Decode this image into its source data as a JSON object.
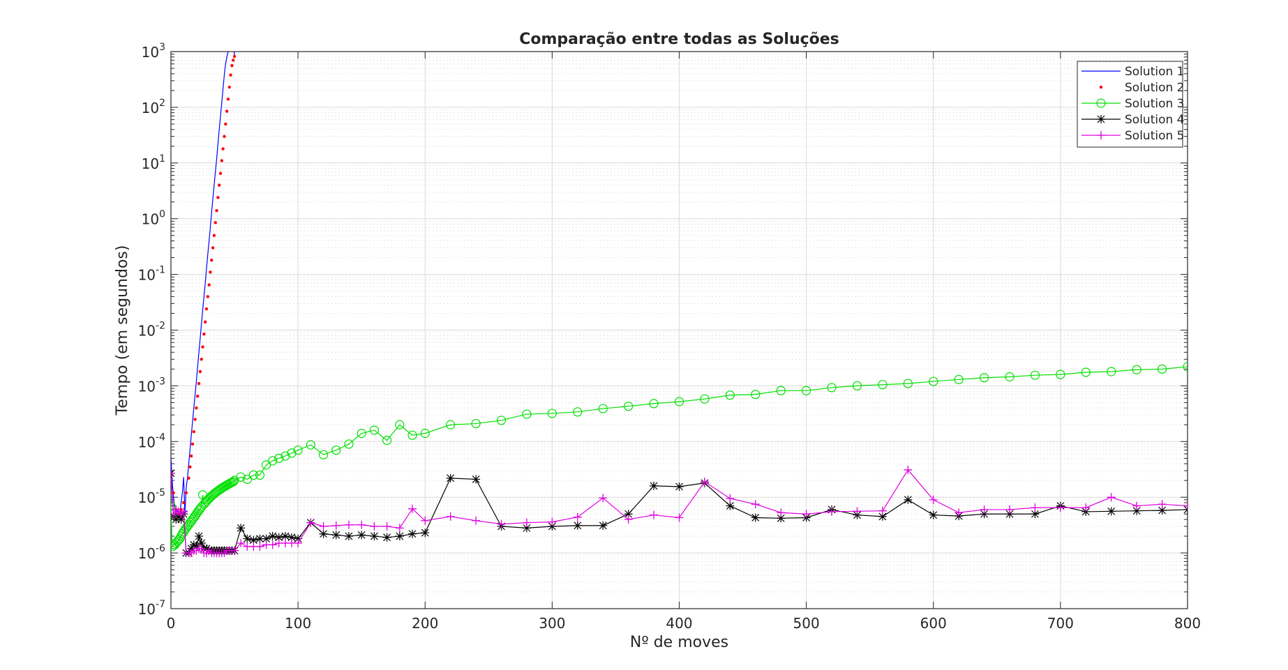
{
  "chart_data": {
    "type": "line",
    "title": "Comparação entre todas as Soluções",
    "xlabel": "Nº de moves",
    "ylabel": "Tempo (em segundos)",
    "xlim": [
      0,
      800
    ],
    "ylim": [
      1e-07,
      1000
    ],
    "yscale": "log",
    "grid": true,
    "legend_position": "top-right",
    "x_ticks": [
      0,
      100,
      200,
      300,
      400,
      500,
      600,
      700,
      800
    ],
    "x_tick_labels": [
      "0",
      "100",
      "200",
      "300",
      "400",
      "500",
      "600",
      "700",
      "800"
    ],
    "y_tick_exponents": [
      -7,
      -6,
      -5,
      -4,
      -3,
      -2,
      -1,
      0,
      1,
      2,
      3
    ],
    "y_tick_labels": [
      "10-7",
      "10-6",
      "10-5",
      "10-4",
      "10-3",
      "10-2",
      "10-1",
      "100",
      "101",
      "102",
      "103"
    ],
    "series": [
      {
        "name": "Solution 1",
        "color": "#0000ff",
        "marker": "none",
        "x": [
          0,
          1,
          2,
          3,
          4,
          5,
          6,
          7,
          8,
          9,
          10,
          11,
          12,
          13,
          14,
          15,
          16,
          17,
          18,
          19,
          20,
          21,
          22,
          23,
          24,
          25,
          26,
          27,
          28,
          29,
          30,
          31,
          32,
          33,
          34,
          35,
          36,
          37,
          38,
          39,
          40,
          41,
          42,
          43,
          44,
          45,
          46,
          47,
          48,
          49,
          50
        ],
        "y": [
          5e-05,
          2e-05,
          1e-05,
          6e-06,
          5e-06,
          6e-06,
          5e-06,
          5e-06,
          8e-06,
          1.2e-05,
          2.3e-05,
          5e-06,
          1.5e-05,
          2.2e-05,
          4e-05,
          7e-05,
          0.00013,
          0.00023,
          0.0004,
          0.0007,
          0.0012,
          0.0022,
          0.004,
          0.007,
          0.013,
          0.023,
          0.04,
          0.07,
          0.13,
          0.23,
          0.4,
          0.7,
          1.3,
          2.3,
          4,
          7,
          12,
          22,
          40,
          70,
          120,
          220,
          380,
          600,
          800,
          1000,
          1200,
          1500,
          2000,
          2500,
          820
        ]
      },
      {
        "name": "Solution 2",
        "color": "#ff0000",
        "marker": "dot",
        "x": [
          0,
          2,
          4,
          6,
          8,
          10,
          12,
          14,
          15,
          16,
          17,
          18,
          19,
          20,
          21,
          22,
          23,
          24,
          25,
          26,
          27,
          28,
          29,
          30,
          31,
          32,
          33,
          34,
          35,
          36,
          37,
          38,
          39,
          40,
          41,
          42,
          43,
          44,
          45,
          46,
          47,
          48,
          49,
          50
        ],
        "y": [
          2.5e-05,
          1.2e-05,
          6e-06,
          5e-06,
          6e-06,
          8e-06,
          1.2e-05,
          2.2e-05,
          3.5e-05,
          5.5e-05,
          9e-05,
          0.00015,
          0.00025,
          0.0004,
          0.00065,
          0.0011,
          0.0018,
          0.003,
          0.005,
          0.0085,
          0.014,
          0.024,
          0.04,
          0.065,
          0.11,
          0.18,
          0.3,
          0.5,
          0.85,
          1.4,
          2.4,
          4,
          6.5,
          11,
          18,
          30,
          50,
          85,
          140,
          230,
          380,
          560,
          700,
          820
        ]
      },
      {
        "name": "Solution 3",
        "color": "#00e000",
        "marker": "circle",
        "x": [
          0,
          1,
          2,
          3,
          4,
          5,
          6,
          7,
          8,
          9,
          10,
          11,
          12,
          13,
          14,
          15,
          16,
          17,
          18,
          19,
          20,
          21,
          22,
          23,
          24,
          25,
          26,
          27,
          28,
          29,
          30,
          31,
          32,
          33,
          34,
          35,
          36,
          37,
          38,
          39,
          40,
          41,
          42,
          43,
          44,
          45,
          46,
          47,
          48,
          49,
          50,
          55,
          60,
          65,
          70,
          75,
          80,
          85,
          90,
          95,
          100,
          110,
          120,
          130,
          140,
          150,
          160,
          170,
          180,
          190,
          200,
          220,
          240,
          260,
          280,
          300,
          320,
          340,
          360,
          380,
          400,
          420,
          440,
          460,
          480,
          500,
          520,
          540,
          560,
          580,
          600,
          620,
          640,
          660,
          680,
          700,
          720,
          740,
          760,
          780,
          800
        ],
        "y": [
          7e-06,
          1.3e-06,
          1.4e-06,
          1.4e-06,
          1.5e-06,
          1.6e-06,
          1.7e-06,
          1.8e-06,
          2e-06,
          2.2e-06,
          2.4e-06,
          2.6e-06,
          2.8e-06,
          3e-06,
          3.2e-06,
          3.5e-06,
          3.7e-06,
          4e-06,
          4.3e-06,
          4.6e-06,
          5e-06,
          5.4e-06,
          5.8e-06,
          6.2e-06,
          6.7e-06,
          1.1e-05,
          7.5e-06,
          8e-06,
          8.5e-06,
          9e-06,
          9.5e-06,
          1e-05,
          1.05e-05,
          1.1e-05,
          1.15e-05,
          1.2e-05,
          1.25e-05,
          1.3e-05,
          1.35e-05,
          1.4e-05,
          1.45e-05,
          1.5e-05,
          1.55e-05,
          1.6e-05,
          1.65e-05,
          1.7e-05,
          1.75e-05,
          1.8e-05,
          1.85e-05,
          1.9e-05,
          2e-05,
          2.3e-05,
          2.1e-05,
          2.5e-05,
          2.5e-05,
          3.8e-05,
          4.5e-05,
          5e-05,
          5.5e-05,
          6.2e-05,
          7e-05,
          8.7e-05,
          5.8e-05,
          7e-05,
          9e-05,
          0.00014,
          0.00016,
          0.000105,
          0.0002,
          0.00013,
          0.00014,
          0.0002,
          0.00021,
          0.00024,
          0.00031,
          0.00032,
          0.00034,
          0.00039,
          0.00043,
          0.00048,
          0.00052,
          0.00058,
          0.00068,
          0.0007,
          0.00082,
          0.00082,
          0.00093,
          0.001,
          0.00105,
          0.0011,
          0.0012,
          0.0013,
          0.0014,
          0.00145,
          0.00155,
          0.0016,
          0.00175,
          0.0018,
          0.00195,
          0.002,
          0.0022
        ]
      },
      {
        "name": "Solution 4",
        "color": "#000000",
        "marker": "asterisk",
        "x": [
          0,
          2,
          4,
          6,
          8,
          10,
          12,
          14,
          16,
          18,
          20,
          22,
          24,
          26,
          28,
          30,
          32,
          34,
          36,
          38,
          40,
          42,
          44,
          46,
          48,
          50,
          55,
          60,
          65,
          70,
          75,
          80,
          85,
          90,
          95,
          100,
          110,
          120,
          130,
          140,
          150,
          160,
          170,
          180,
          190,
          200,
          220,
          240,
          260,
          280,
          300,
          320,
          340,
          360,
          380,
          400,
          420,
          440,
          460,
          480,
          500,
          520,
          540,
          560,
          580,
          600,
          620,
          640,
          660,
          680,
          700,
          720,
          740,
          760,
          780,
          800
        ],
        "y": [
          2.7e-05,
          4.5e-06,
          4e-06,
          4.5e-06,
          4e-06,
          5e-06,
          1e-06,
          1e-06,
          1.2e-06,
          1.4e-06,
          1.3e-06,
          2e-06,
          1.5e-06,
          1.2e-06,
          1.2e-06,
          1.1e-06,
          1.1e-06,
          1.1e-06,
          1.1e-06,
          1.1e-06,
          1.1e-06,
          1.1e-06,
          1.1e-06,
          1.1e-06,
          1.1e-06,
          1.1e-06,
          2.8e-06,
          1.8e-06,
          1.7e-06,
          1.8e-06,
          1.8e-06,
          2e-06,
          1.9e-06,
          2e-06,
          1.9e-06,
          1.8e-06,
          3.5e-06,
          2.2e-06,
          2.1e-06,
          2e-06,
          2.1e-06,
          2e-06,
          1.9e-06,
          2e-06,
          2.2e-06,
          2.3e-06,
          2.2e-05,
          2.1e-05,
          3e-06,
          2.8e-06,
          3e-06,
          3.1e-06,
          3.1e-06,
          5e-06,
          1.6e-05,
          1.55e-05,
          1.8e-05,
          7e-06,
          4.3e-06,
          4.2e-06,
          4.3e-06,
          6e-06,
          4.8e-06,
          4.5e-06,
          9e-06,
          4.8e-06,
          4.6e-06,
          5e-06,
          5e-06,
          5e-06,
          7e-06,
          5.5e-06,
          5.6e-06,
          5.7e-06,
          5.8e-06,
          6e-06
        ]
      },
      {
        "name": "Solution 5",
        "color": "#e000e0",
        "marker": "plus",
        "x": [
          0,
          2,
          4,
          6,
          8,
          10,
          12,
          14,
          16,
          18,
          20,
          22,
          24,
          26,
          28,
          30,
          32,
          34,
          36,
          38,
          40,
          42,
          44,
          46,
          48,
          50,
          55,
          60,
          65,
          70,
          75,
          80,
          85,
          90,
          95,
          100,
          110,
          120,
          130,
          140,
          150,
          160,
          170,
          180,
          190,
          200,
          220,
          240,
          260,
          280,
          300,
          320,
          340,
          360,
          380,
          400,
          420,
          440,
          460,
          480,
          500,
          520,
          540,
          560,
          580,
          600,
          620,
          640,
          660,
          680,
          700,
          720,
          740,
          760,
          780,
          800
        ],
        "y": [
          2.7e-05,
          5e-06,
          6e-06,
          5.5e-06,
          5e-06,
          5.5e-06,
          1e-06,
          1e-06,
          1e-06,
          1.1e-06,
          1.1e-06,
          1.2e-06,
          1.2e-06,
          1e-06,
          1e-06,
          1.1e-06,
          1e-06,
          1e-06,
          1e-06,
          1e-06,
          1e-06,
          1e-06,
          1.1e-06,
          1.1e-06,
          1.1e-06,
          1.1e-06,
          1.5e-06,
          1.3e-06,
          1.3e-06,
          1.3e-06,
          1.4e-06,
          1.4e-06,
          1.5e-06,
          1.5e-06,
          1.5e-06,
          1.5e-06,
          3.5e-06,
          3e-06,
          3.1e-06,
          3.2e-06,
          3.2e-06,
          3e-06,
          3e-06,
          2.8e-06,
          6.2e-06,
          3.8e-06,
          4.5e-06,
          3.8e-06,
          3.3e-06,
          3.5e-06,
          3.6e-06,
          4.4e-06,
          9.7e-06,
          4e-06,
          4.8e-06,
          4.3e-06,
          1.9e-05,
          9.5e-06,
          7.5e-06,
          5.3e-06,
          5e-06,
          5.5e-06,
          5.6e-06,
          5.7e-06,
          3.1e-05,
          9e-06,
          5.3e-06,
          6e-06,
          6e-06,
          6.5e-06,
          6.5e-06,
          6.5e-06,
          1e-05,
          7e-06,
          7.5e-06,
          7e-06
        ]
      }
    ]
  }
}
